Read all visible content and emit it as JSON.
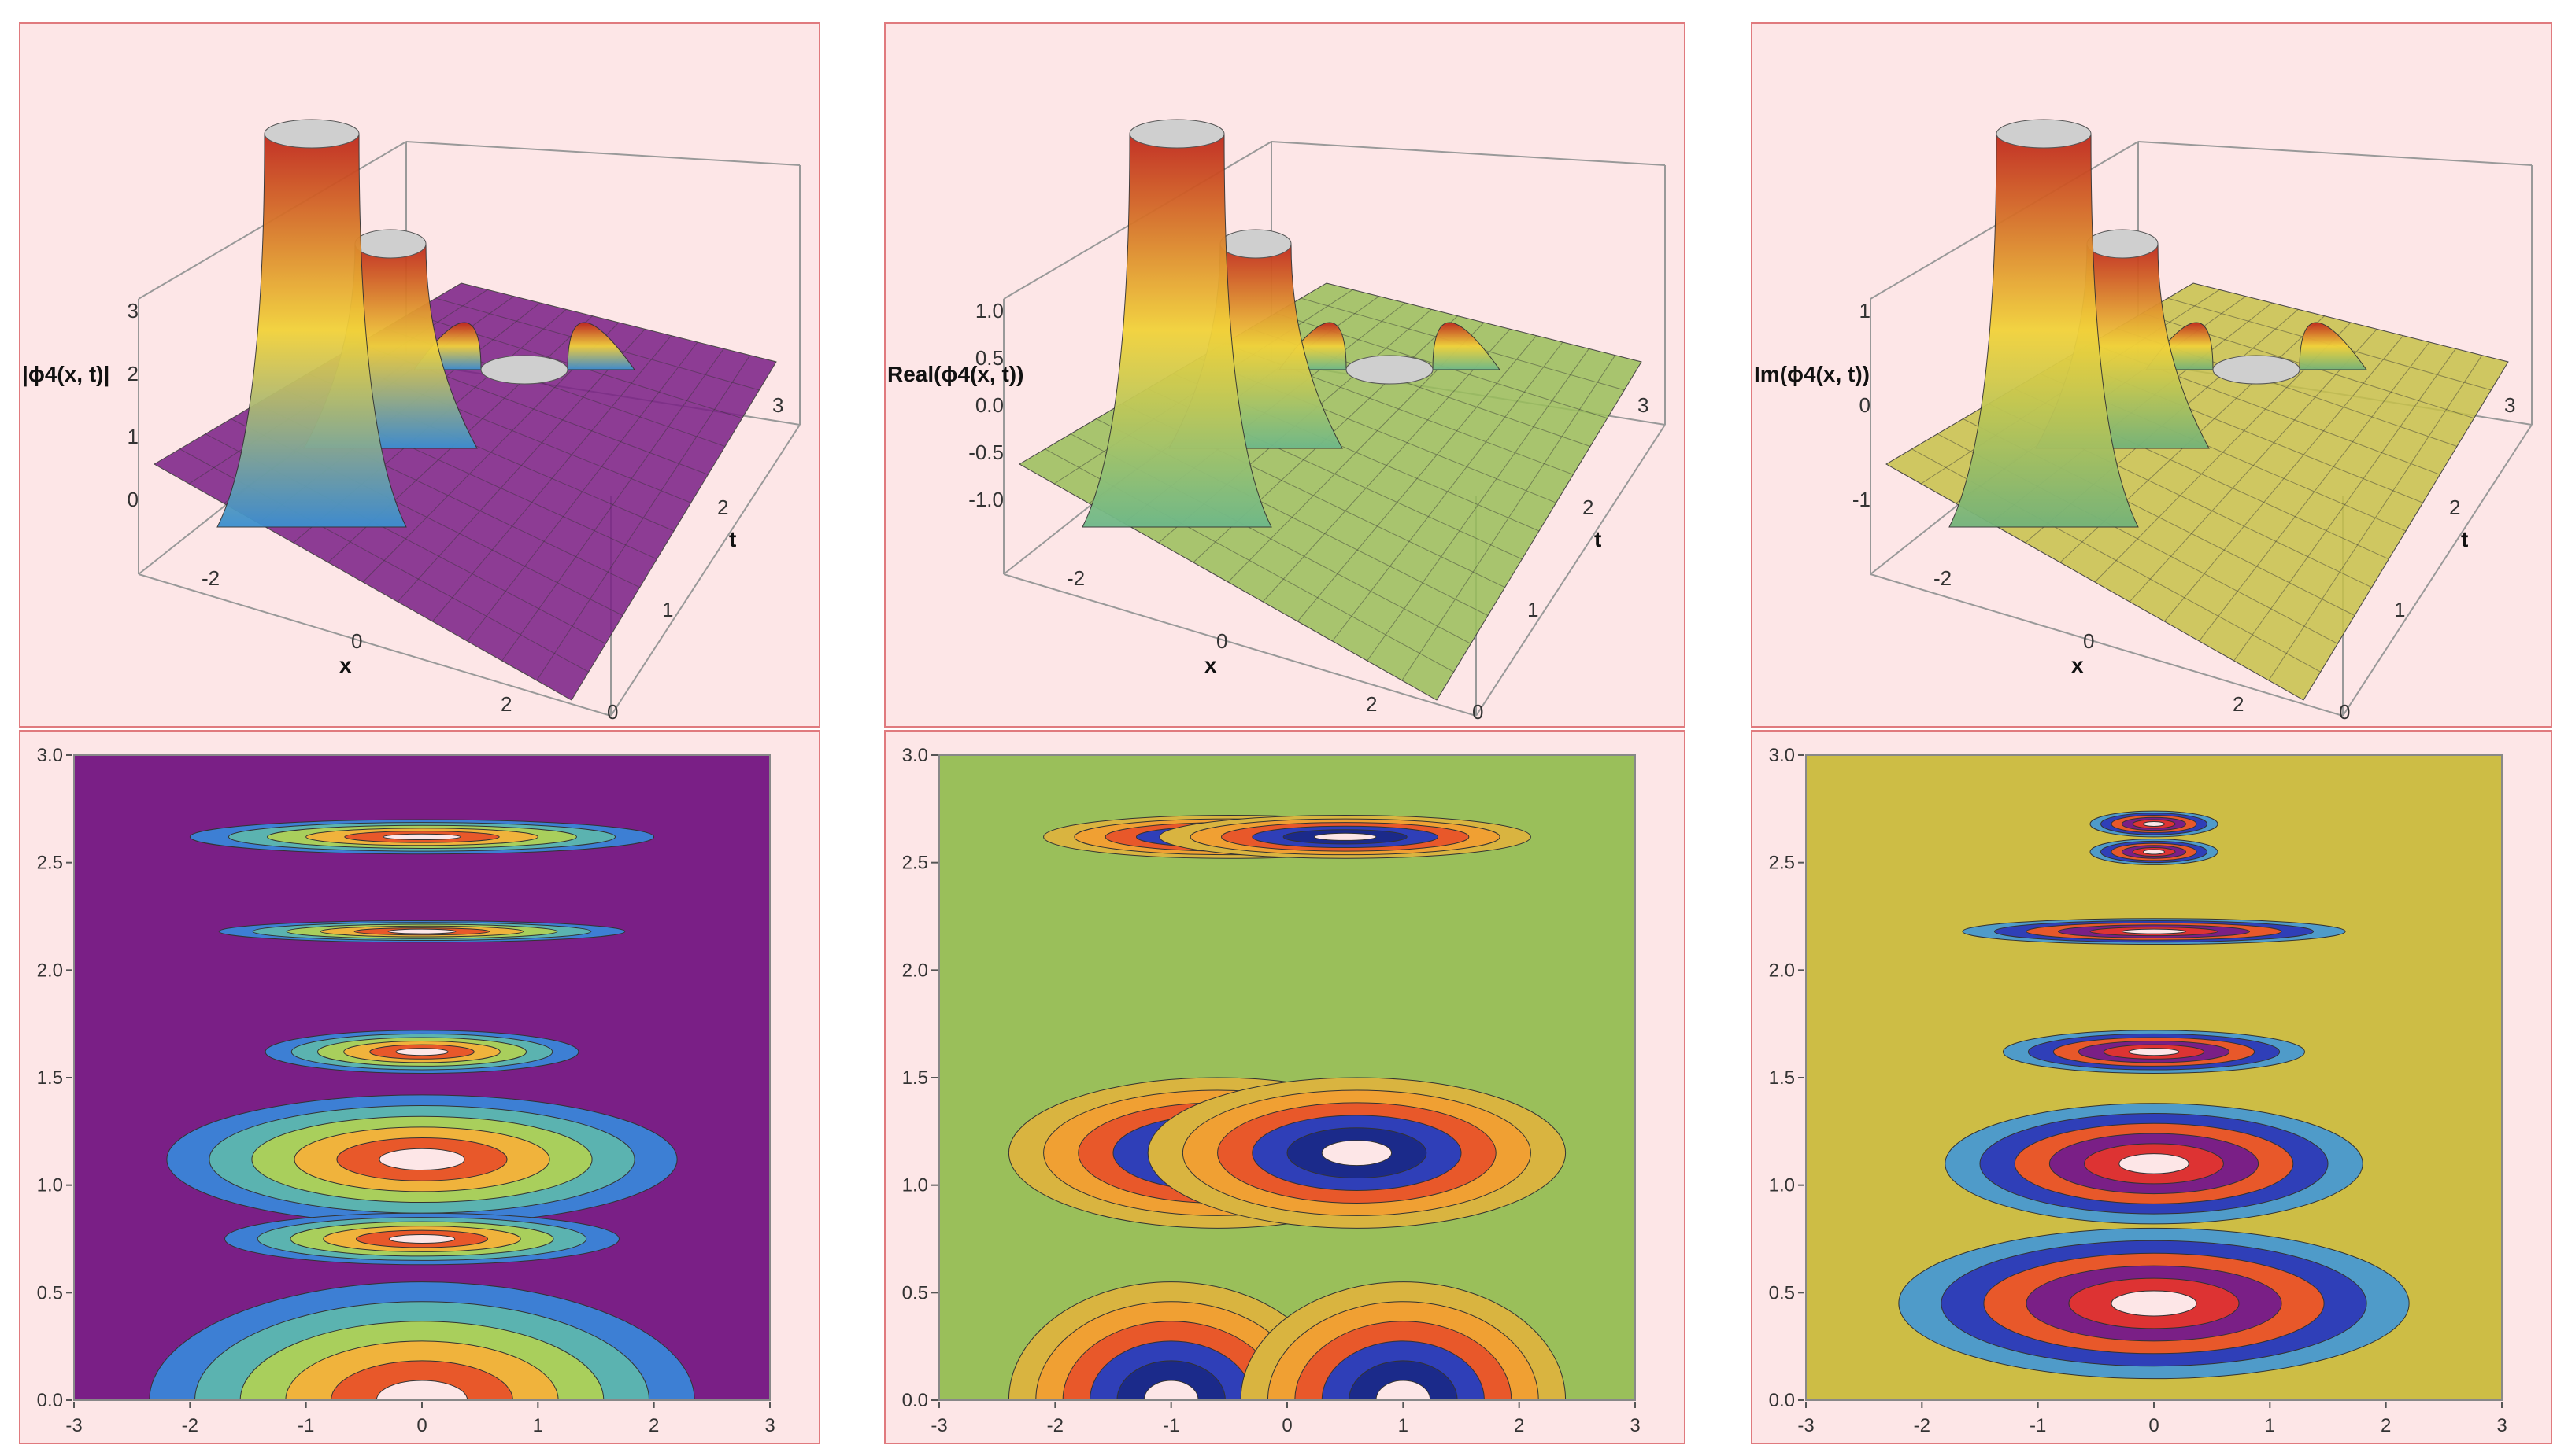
{
  "panels": [
    {
      "id": "abs",
      "zlabel": "|ϕ4(x, t)|",
      "xlabel": "x",
      "tlabel": "t",
      "zticks": [
        "0",
        "1",
        "2",
        "3"
      ],
      "xticks": [
        "-2",
        "0",
        "2"
      ],
      "tticks": [
        "0",
        "1",
        "2",
        "3"
      ],
      "colors": {
        "base": "#7a1f86",
        "mid": "#3b8fd0",
        "peak": "#c0281c"
      }
    },
    {
      "id": "real",
      "zlabel": "Real(ϕ4(x, t))",
      "xlabel": "x",
      "tlabel": "t",
      "zticks": [
        "-1.0",
        "-0.5",
        "0.0",
        "0.5",
        "1.0"
      ],
      "xticks": [
        "-2",
        "0",
        "2"
      ],
      "tticks": [
        "0",
        "1",
        "2",
        "3"
      ],
      "colors": {
        "base": "#9abf5a",
        "mid": "#6db88a",
        "peak": "#c0281c"
      }
    },
    {
      "id": "imag",
      "zlabel": "Im(ϕ4(x, t))",
      "xlabel": "x",
      "tlabel": "t",
      "zticks": [
        "-1",
        "0",
        "1"
      ],
      "xticks": [
        "-2",
        "0",
        "2"
      ],
      "tticks": [
        "0",
        "1",
        "2",
        "3"
      ],
      "colors": {
        "base": "#c7c24a",
        "mid": "#72b37a",
        "peak": "#c0281c"
      }
    }
  ],
  "chart_data": [
    {
      "type": "heatmap",
      "title": "",
      "x_ticks": [
        "-3",
        "-2",
        "-1",
        "0",
        "1",
        "2",
        "3"
      ],
      "y_ticks": [
        "0.0",
        "0.5",
        "1.0",
        "1.5",
        "2.0",
        "2.5",
        "3.0"
      ],
      "xlim": [
        -3,
        3
      ],
      "ylim": [
        0,
        3
      ],
      "background": "#7a1f86",
      "features": [
        {
          "x": 0,
          "t": 2.62,
          "rx": 2.0,
          "rt": 0.08
        },
        {
          "x": 0,
          "t": 2.18,
          "rx": 1.75,
          "rt": 0.05
        },
        {
          "x": 0,
          "t": 1.62,
          "rx": 1.35,
          "rt": 0.1
        },
        {
          "x": 0,
          "t": 1.12,
          "rx": 2.2,
          "rt": 0.3
        },
        {
          "x": 0,
          "t": 0.75,
          "rx": 1.7,
          "rt": 0.12
        },
        {
          "x": 0,
          "t": 0.0,
          "rx": 2.35,
          "rt": 0.55
        }
      ]
    },
    {
      "type": "heatmap",
      "title": "",
      "x_ticks": [
        "-3",
        "-2",
        "-1",
        "0",
        "1",
        "2",
        "3"
      ],
      "y_ticks": [
        "0.0",
        "0.5",
        "1.0",
        "1.5",
        "2.0",
        "2.5",
        "3.0"
      ],
      "xlim": [
        -3,
        3
      ],
      "ylim": [
        0,
        3
      ],
      "background": "#9abf5a",
      "features": [
        {
          "x": -0.5,
          "t": 2.62,
          "rx": 1.6,
          "rt": 0.1
        },
        {
          "x": 0.5,
          "t": 2.62,
          "rx": 1.6,
          "rt": 0.1
        },
        {
          "x": -0.6,
          "t": 1.15,
          "rx": 1.8,
          "rt": 0.35
        },
        {
          "x": 0.6,
          "t": 1.15,
          "rx": 1.8,
          "rt": 0.35
        },
        {
          "x": -1.0,
          "t": 0.0,
          "rx": 1.4,
          "rt": 0.55
        },
        {
          "x": 1.0,
          "t": 0.0,
          "rx": 1.4,
          "rt": 0.55
        }
      ]
    },
    {
      "type": "heatmap",
      "title": "",
      "x_ticks": [
        "-3",
        "-2",
        "-1",
        "0",
        "1",
        "2",
        "3"
      ],
      "y_ticks": [
        "0.0",
        "0.5",
        "1.0",
        "1.5",
        "2.0",
        "2.5",
        "3.0"
      ],
      "xlim": [
        -3,
        3
      ],
      "ylim": [
        0,
        3
      ],
      "background": "#cdbd45",
      "features": [
        {
          "x": 0,
          "t": 2.68,
          "rx": 0.55,
          "rt": 0.06
        },
        {
          "x": 0,
          "t": 2.55,
          "rx": 0.55,
          "rt": 0.06
        },
        {
          "x": 0,
          "t": 2.18,
          "rx": 1.65,
          "rt": 0.06
        },
        {
          "x": 0,
          "t": 1.62,
          "rx": 1.3,
          "rt": 0.1
        },
        {
          "x": 0,
          "t": 1.1,
          "rx": 1.8,
          "rt": 0.28
        },
        {
          "x": 0,
          "t": 0.45,
          "rx": 2.2,
          "rt": 0.35
        }
      ]
    }
  ]
}
